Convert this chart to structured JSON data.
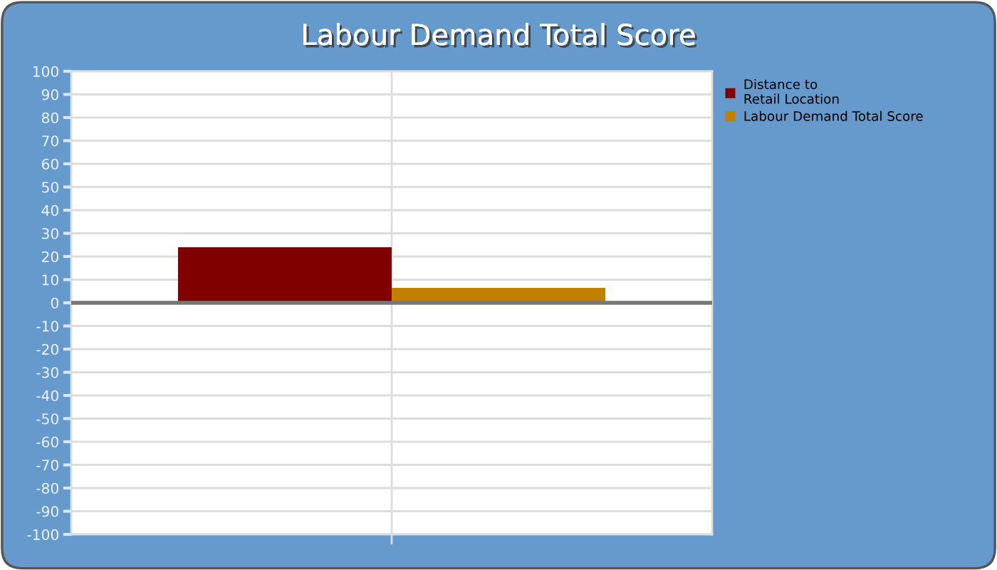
{
  "chart_data": {
    "type": "bar",
    "title": "Labour Demand Total Score",
    "categories": [
      null
    ],
    "series": [
      {
        "name": "Distance to\nRetail Location",
        "color": "#800000",
        "values": [
          24
        ]
      },
      {
        "name": "Labour Demand Total Score",
        "color": "#c08000",
        "values": [
          6.5
        ]
      }
    ],
    "ylim": [
      -100,
      100
    ],
    "yticks": [
      -100,
      -90,
      -80,
      -70,
      -60,
      -50,
      -40,
      -30,
      -20,
      -10,
      0,
      10,
      20,
      30,
      40,
      50,
      60,
      70,
      80,
      90,
      100
    ],
    "grid": true,
    "legend": "right"
  }
}
